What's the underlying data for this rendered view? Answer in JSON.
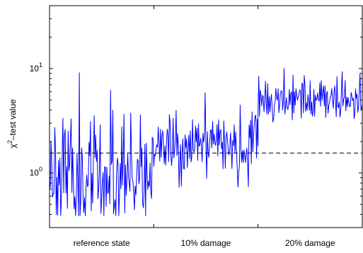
{
  "chart_data": {
    "type": "line",
    "title": "",
    "xlabel": "",
    "ylabel": {
      "prefix": "χ",
      "sup": "2",
      "suffix": "–test value"
    },
    "y_scale": "log",
    "ylim": [
      0.3,
      40
    ],
    "y_ticks": [
      {
        "value": 1,
        "base": "10",
        "exp": "0"
      },
      {
        "value": 10,
        "base": "10",
        "exp": "1"
      }
    ],
    "x_range": [
      0,
      300
    ],
    "x_ticks": [
      100,
      200
    ],
    "x_category_labels": [
      {
        "label": "reference state",
        "center": 50
      },
      {
        "label": "10% damage",
        "center": 150
      },
      {
        "label": "20% damage",
        "center": 250
      }
    ],
    "threshold": 1.55,
    "grid": false,
    "series": [
      {
        "color": "#0000ff",
        "segments": [
          {
            "x_start": 0,
            "x_end": 100,
            "base": 0.95,
            "spread": 0.55,
            "seed": 11,
            "spike_rate": 0.12
          },
          {
            "x_start": 100,
            "x_end": 200,
            "base": 1.65,
            "spread": 0.32,
            "seed": 23,
            "spike_rate": 0.1
          },
          {
            "x_start": 200,
            "x_end": 300,
            "base": 4.9,
            "spread": 0.22,
            "seed": 37,
            "spike_rate": 0.12
          }
        ]
      }
    ]
  }
}
